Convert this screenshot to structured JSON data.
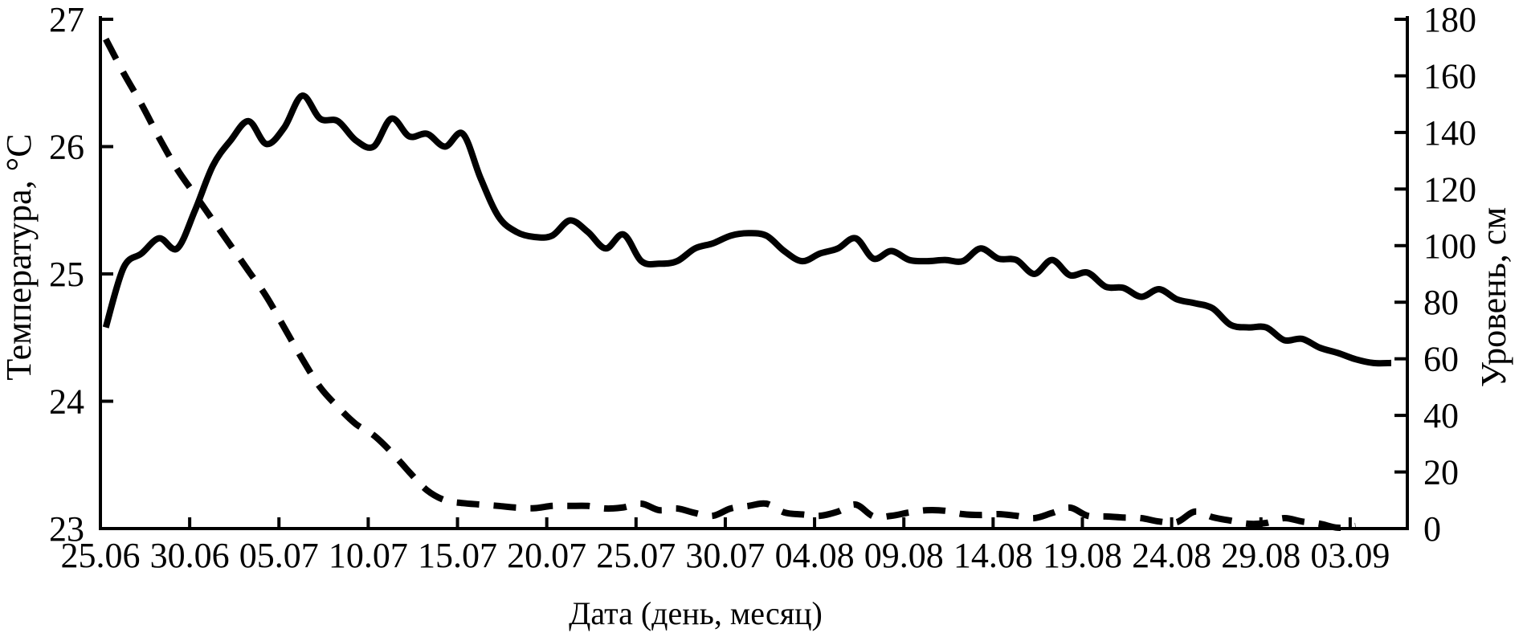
{
  "canvas": {
    "background": "#ffffff",
    "ink": "#000000"
  },
  "chart_data": {
    "type": "line",
    "title": "",
    "xlabel": "Дата (день, месяц)",
    "grid": false,
    "legend": null,
    "x_axis": {
      "tick_labels": [
        "25.06",
        "30.06",
        "05.07",
        "10.07",
        "15.07",
        "20.07",
        "25.07",
        "30.07",
        "04.08",
        "09.08",
        "14.08",
        "19.08",
        "24.08",
        "29.08",
        "03.09"
      ],
      "tick_interval_days": 5,
      "range_days": [
        0,
        73.2
      ],
      "start_date": "25.06"
    },
    "left_axis": {
      "label": "Температура, °С",
      "range": [
        23,
        27
      ],
      "ticks": [
        27,
        26,
        25,
        24,
        23
      ]
    },
    "right_axis": {
      "label": "Уровень, см",
      "range": [
        0,
        180
      ],
      "ticks": [
        180,
        160,
        140,
        120,
        100,
        80,
        60,
        40,
        20,
        0
      ]
    },
    "series": [
      {
        "name": "Температура",
        "axis": "left",
        "line_style": "solid",
        "color": "#000000",
        "first_day": 0.3,
        "day_step": 1,
        "values": [
          24.58,
          25.05,
          25.16,
          25.28,
          25.2,
          25.5,
          25.85,
          26.05,
          26.2,
          26.02,
          26.15,
          26.4,
          26.22,
          26.2,
          26.05,
          26.0,
          26.22,
          26.08,
          26.1,
          26.0,
          26.1,
          25.75,
          25.45,
          25.33,
          25.29,
          25.3,
          25.42,
          25.33,
          25.2,
          25.31,
          25.1,
          25.08,
          25.1,
          25.2,
          25.24,
          25.3,
          25.32,
          25.3,
          25.18,
          25.1,
          25.16,
          25.2,
          25.28,
          25.12,
          25.18,
          25.11,
          25.1,
          25.11,
          25.1,
          25.2,
          25.12,
          25.11,
          25.0,
          25.11,
          24.99,
          25.01,
          24.9,
          24.89,
          24.82,
          24.88,
          24.8,
          24.77,
          24.73,
          24.6,
          24.58,
          24.58,
          24.48,
          24.49,
          24.42,
          24.38,
          24.33,
          24.3,
          24.3
        ]
      },
      {
        "name": "Уровень",
        "axis": "right",
        "line_style": "dashed",
        "color": "#000000",
        "first_day": 0.3,
        "day_step": 1,
        "values": [
          173,
          161,
          150,
          138,
          127,
          118,
          109,
          100,
          91,
          82,
          71,
          60,
          50,
          43,
          37,
          33,
          27,
          20,
          13.5,
          10,
          9,
          8.5,
          8,
          7.4,
          7.2,
          8,
          8,
          8,
          7.1,
          7.5,
          8.8,
          6.5,
          7.1,
          5.5,
          4.5,
          7.1,
          8,
          8.8,
          5.7,
          5,
          4.5,
          6,
          8.5,
          4.3,
          4.5,
          5.7,
          6.5,
          6.3,
          5.1,
          4.8,
          5.1,
          4.5,
          3.7,
          5.5,
          7.4,
          4.5,
          4.3,
          3.9,
          3.7,
          2.5,
          2.3,
          6,
          4,
          2.8,
          1.7,
          2,
          3.7,
          2.5,
          1.7,
          0.3,
          0.9
        ]
      }
    ]
  }
}
